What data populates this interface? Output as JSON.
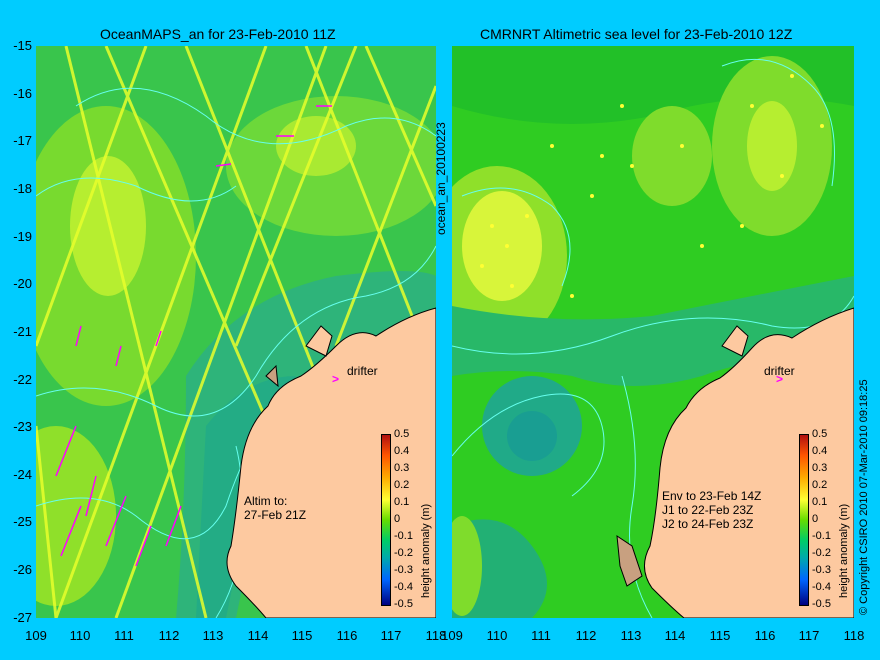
{
  "left_panel": {
    "title": "OceanMAPS_an for 23-Feb-2010 11Z",
    "note": [
      "Altim to:",
      "27-Feb 21Z"
    ],
    "drifter_label": "drifter",
    "side_label": "ocean_an_20100223"
  },
  "right_panel": {
    "title": "CMRNRT Altimetric sea level  for 23-Feb-2010 12Z",
    "note": [
      "Env to 23-Feb 14Z",
      "J1 to 22-Feb 23Z",
      "J2 to 24-Feb 23Z"
    ],
    "drifter_label": "drifter",
    "side_label": "© Copyright CSIRO 2010   07-Mar-2010 09:18:25"
  },
  "axes": {
    "lat_labels": [
      "-15",
      "-16",
      "-17",
      "-18",
      "-19",
      "-20",
      "-21",
      "-22",
      "-23",
      "-24",
      "-25",
      "-26",
      "-27"
    ],
    "lon_labels": [
      "109",
      "110",
      "111",
      "112",
      "113",
      "114",
      "115",
      "116",
      "117",
      "118"
    ]
  },
  "colorbar": {
    "label": "height anomaly (m)",
    "ticks": [
      "0.5",
      "0.4",
      "0.3",
      "0.2",
      "0.1",
      "0",
      "-0.1",
      "-0.2",
      "-0.3",
      "-0.4",
      "-0.5"
    ],
    "range": [
      -0.5,
      0.5
    ]
  },
  "colors": {
    "background": "#00ccff",
    "land": "#fdc9a0",
    "contour": "#66ffee",
    "vector": "#ff00ff"
  }
}
